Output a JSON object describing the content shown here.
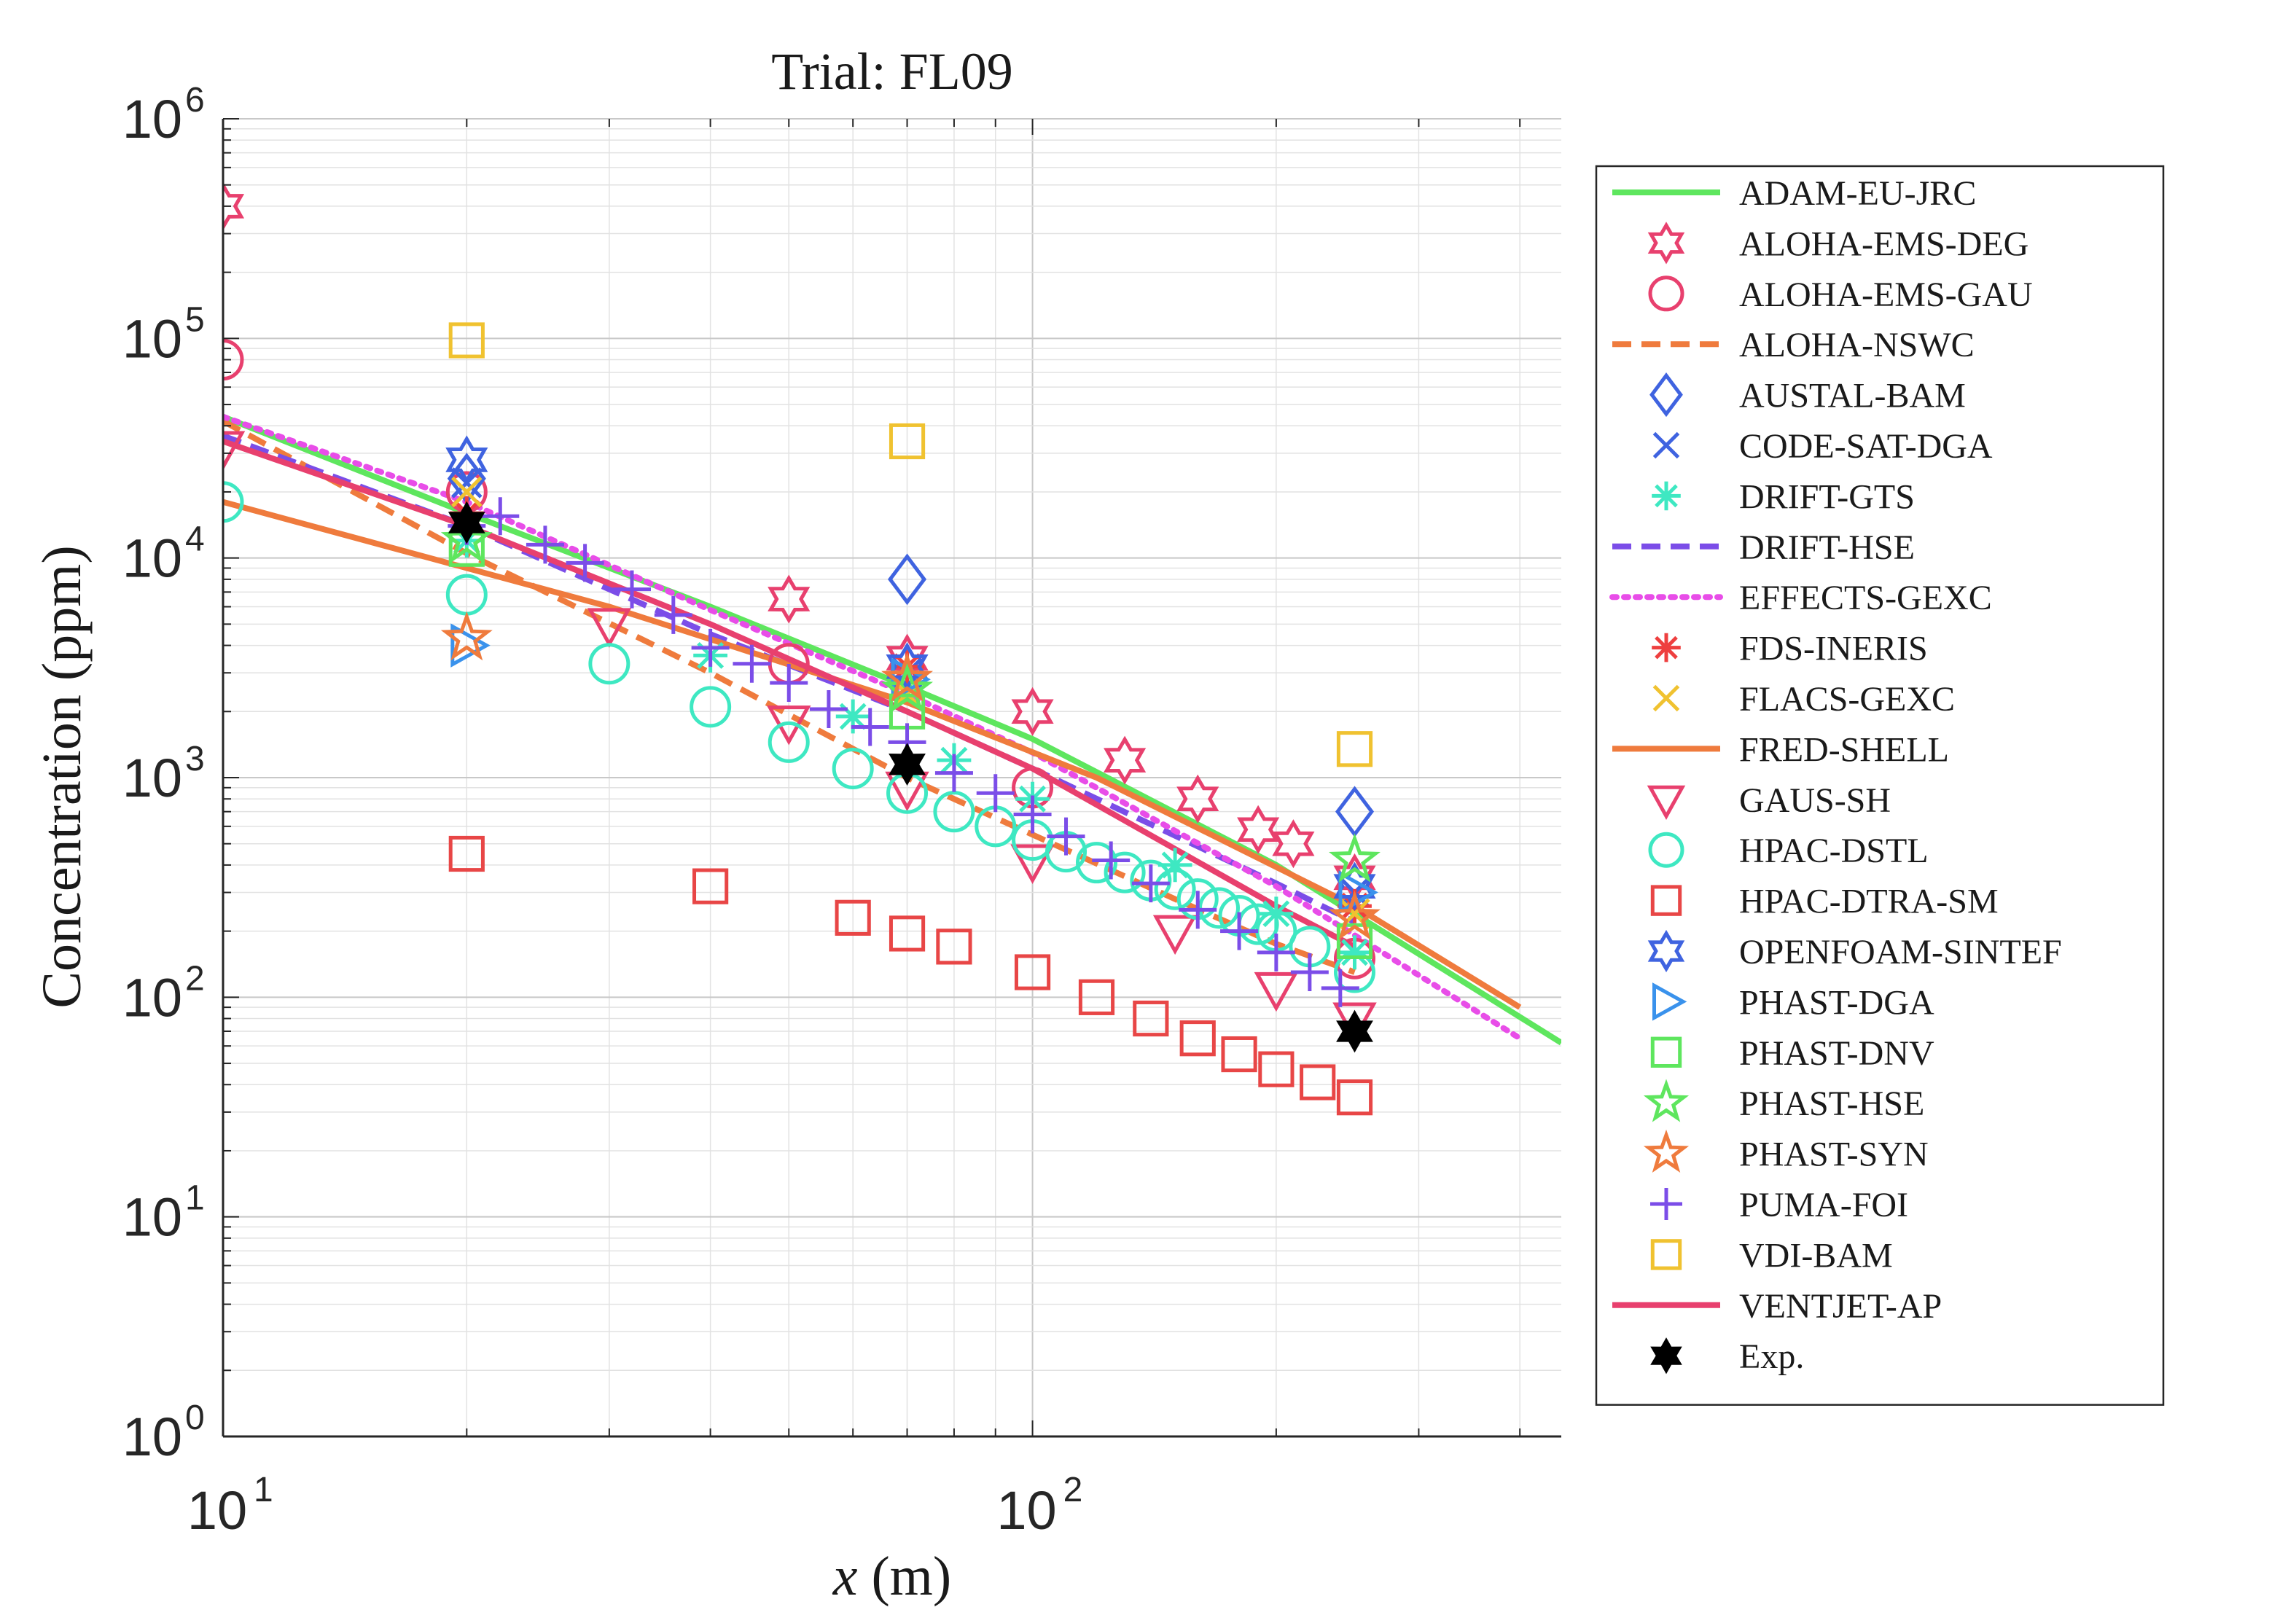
{
  "chart_data": {
    "type": "scatter",
    "title": "Trial:  FL09",
    "xlabel": "x (m)",
    "ylabel": "Concentration (ppm)",
    "xscale": "log",
    "yscale": "log",
    "xlim": [
      10,
      450
    ],
    "ylim": [
      1,
      1000000
    ],
    "x_ticks": [
      {
        "base": "10",
        "exp": "1",
        "value": 10
      },
      {
        "base": "10",
        "exp": "2",
        "value": 100
      }
    ],
    "y_ticks": [
      {
        "base": "10",
        "exp": "0",
        "value": 1
      },
      {
        "base": "10",
        "exp": "1",
        "value": 10
      },
      {
        "base": "10",
        "exp": "2",
        "value": 100
      },
      {
        "base": "10",
        "exp": "3",
        "value": 1000
      },
      {
        "base": "10",
        "exp": "4",
        "value": 10000
      },
      {
        "base": "10",
        "exp": "5",
        "value": 100000
      },
      {
        "base": "10",
        "exp": "6",
        "value": 1000000
      }
    ],
    "grid": true,
    "legend_position": "outside-right",
    "series": [
      {
        "name": "ADAM-EU-JRC",
        "kind": "line",
        "style": "solid",
        "color": "#5ee65e",
        "x": [
          10,
          20,
          40,
          70,
          100,
          200,
          450
        ],
        "y": [
          44000,
          16000,
          6000,
          2600,
          1500,
          400,
          62
        ]
      },
      {
        "name": "ALOHA-EMS-DEG",
        "kind": "marker",
        "marker": "hexagram",
        "color": "#e8406e",
        "x": [
          10,
          50,
          70,
          100,
          130,
          160,
          190,
          210,
          250
        ],
        "y": [
          400000,
          6500,
          3500,
          2000,
          1200,
          800,
          580,
          500,
          350
        ]
      },
      {
        "name": "ALOHA-EMS-GAU",
        "kind": "marker",
        "marker": "circle",
        "color": "#e8406e",
        "x": [
          10,
          20,
          50,
          100,
          250
        ],
        "y": [
          80000,
          20000,
          3300,
          900,
          150
        ]
      },
      {
        "name": "ALOHA-NSWC",
        "kind": "line",
        "style": "dashed",
        "color": "#ef7b3d",
        "x": [
          10,
          20,
          40,
          70,
          100,
          150,
          200,
          250
        ],
        "y": [
          42000,
          10500,
          3000,
          1000,
          550,
          280,
          175,
          130
        ]
      },
      {
        "name": "AUSTAL-BAM",
        "kind": "marker",
        "marker": "diamond",
        "color": "#3f63e0",
        "x": [
          20,
          70,
          250
        ],
        "y": [
          23000,
          8000,
          700
        ]
      },
      {
        "name": "CODE-SAT-DGA",
        "kind": "marker",
        "marker": "x",
        "color": "#3f63e0",
        "x": [
          20,
          70,
          250
        ],
        "y": [
          22000,
          3000,
          300
        ]
      },
      {
        "name": "DRIFT-GTS",
        "kind": "marker",
        "marker": "asterisk",
        "color": "#3ee8c2",
        "x": [
          20,
          40,
          60,
          80,
          100,
          150,
          200,
          250
        ],
        "y": [
          12000,
          3600,
          1900,
          1200,
          800,
          400,
          240,
          160
        ]
      },
      {
        "name": "DRIFT-HSE",
        "kind": "line",
        "style": "dashed",
        "color": "#7b4de8",
        "x": [
          10,
          20,
          40,
          70,
          100,
          200,
          250
        ],
        "y": [
          36000,
          14000,
          4500,
          2000,
          1100,
          330,
          220
        ]
      },
      {
        "name": "EFFECTS-GEXC",
        "kind": "line",
        "style": "dotted",
        "color": "#e84de8",
        "x": [
          10,
          20,
          40,
          70,
          100,
          200,
          400
        ],
        "y": [
          44000,
          18000,
          5800,
          2400,
          1300,
          320,
          65
        ]
      },
      {
        "name": "FDS-INERIS",
        "kind": "marker",
        "marker": "asterisk",
        "color": "#ee3f3f",
        "x": [
          20,
          70,
          250
        ],
        "y": [
          16000,
          3200,
          260
        ]
      },
      {
        "name": "FLACS-GEXC",
        "kind": "marker",
        "marker": "x",
        "color": "#f0c230",
        "x": [
          20,
          70,
          250
        ],
        "y": [
          20000,
          2400,
          240
        ]
      },
      {
        "name": "FRED-SHELL",
        "kind": "line",
        "style": "solid",
        "color": "#ef7b3d",
        "x": [
          10,
          30,
          70,
          120,
          250,
          400
        ],
        "y": [
          18000,
          6000,
          2200,
          1000,
          260,
          90
        ]
      },
      {
        "name": "GAUS-SH",
        "kind": "marker",
        "marker": "triangle-down",
        "color": "#e8406e",
        "x": [
          10,
          30,
          50,
          70,
          100,
          150,
          200,
          250
        ],
        "y": [
          32000,
          5000,
          1800,
          900,
          420,
          200,
          110,
          80
        ]
      },
      {
        "name": "HPAC-DSTL",
        "kind": "marker",
        "marker": "circle",
        "color": "#3ee8c2",
        "x": [
          10,
          20,
          30,
          40,
          50,
          60,
          70,
          80,
          90,
          100,
          110,
          120,
          130,
          140,
          150,
          160,
          170,
          180,
          190,
          200,
          220,
          250
        ],
        "y": [
          18000,
          6800,
          3300,
          2100,
          1450,
          1100,
          850,
          700,
          600,
          520,
          460,
          410,
          370,
          340,
          310,
          280,
          255,
          235,
          215,
          200,
          170,
          130
        ]
      },
      {
        "name": "HPAC-DTRA-SM",
        "kind": "marker",
        "marker": "square",
        "color": "#e84646",
        "x": [
          20,
          40,
          60,
          70,
          80,
          100,
          120,
          140,
          160,
          180,
          200,
          225,
          250
        ],
        "y": [
          450,
          320,
          230,
          195,
          170,
          130,
          100,
          80,
          65,
          55,
          47,
          41,
          35
        ]
      },
      {
        "name": "OPENFOAM-SINTEF",
        "kind": "marker",
        "marker": "hexagram",
        "color": "#3f63e0",
        "x": [
          20,
          70,
          250
        ],
        "y": [
          28000,
          3200,
          320
        ]
      },
      {
        "name": "PHAST-DGA",
        "kind": "marker",
        "marker": "triangle-right",
        "color": "#3a92ec",
        "x": [
          20,
          70,
          250
        ],
        "y": [
          4000,
          2800,
          300
        ]
      },
      {
        "name": "PHAST-DNV",
        "kind": "marker",
        "marker": "square",
        "color": "#5ee65e",
        "x": [
          20,
          70,
          250
        ],
        "y": [
          11000,
          2000,
          180
        ]
      },
      {
        "name": "PHAST-HSE",
        "kind": "marker",
        "marker": "pentagram",
        "color": "#5ee65e",
        "x": [
          20,
          70,
          250
        ],
        "y": [
          12000,
          2500,
          420
        ]
      },
      {
        "name": "PHAST-SYN",
        "kind": "marker",
        "marker": "pentagram",
        "color": "#ef7b3d",
        "x": [
          20,
          70,
          250
        ],
        "y": [
          4300,
          2800,
          230
        ]
      },
      {
        "name": "PUMA-FOI",
        "kind": "marker",
        "marker": "plus",
        "color": "#7b4de8",
        "x": [
          20,
          22,
          25,
          28,
          32,
          36,
          40,
          45,
          50,
          56,
          63,
          70,
          80,
          90,
          100,
          110,
          125,
          140,
          160,
          180,
          200,
          220,
          240
        ],
        "y": [
          14000,
          15500,
          11500,
          9500,
          7200,
          5500,
          3900,
          3300,
          2700,
          2050,
          1700,
          1450,
          1050,
          850,
          680,
          540,
          420,
          330,
          250,
          200,
          160,
          130,
          110
        ]
      },
      {
        "name": "VDI-BAM",
        "kind": "marker",
        "marker": "square",
        "color": "#f0c230",
        "x": [
          20,
          70,
          250
        ],
        "y": [
          98000,
          34000,
          1350
        ]
      },
      {
        "name": "VENTJET-AP",
        "kind": "line",
        "style": "solid",
        "color": "#e8406e",
        "x": [
          10,
          20,
          40,
          70,
          100,
          200,
          250
        ],
        "y": [
          34000,
          14000,
          5000,
          2000,
          1100,
          260,
          170
        ]
      },
      {
        "name": "Exp.",
        "kind": "marker",
        "marker": "hexagram-filled",
        "color": "#000000",
        "x": [
          20,
          70,
          250
        ],
        "y": [
          14500,
          1150,
          70
        ]
      }
    ]
  }
}
